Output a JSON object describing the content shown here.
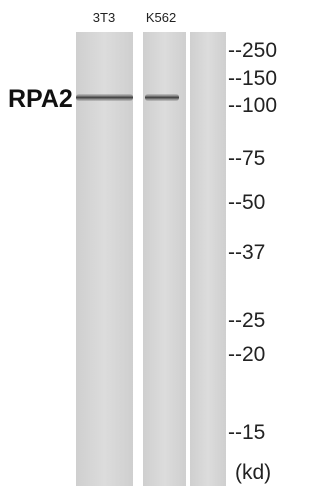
{
  "lanes": [
    {
      "label": "3T3"
    },
    {
      "label": "K562"
    }
  ],
  "protein": "RPA2",
  "markers": [
    "--250",
    "--150",
    "--100",
    "--75",
    "--50",
    "--37",
    "--25",
    "--20",
    "--15"
  ],
  "unit": "(kd)"
}
